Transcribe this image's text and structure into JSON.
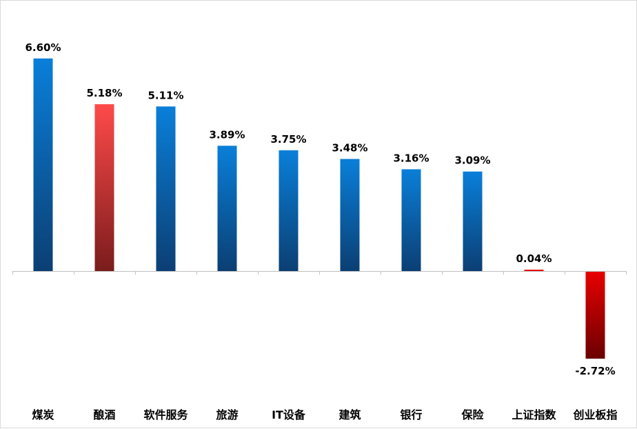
{
  "chart_data": {
    "type": "bar",
    "title": "",
    "xlabel": "",
    "ylabel": "",
    "categories": [
      "煤炭",
      "酿酒",
      "软件服务",
      "旅游",
      "IT设备",
      "建筑",
      "银行",
      "保险",
      "上证指数",
      "创业板指"
    ],
    "values": [
      6.6,
      5.18,
      5.11,
      3.89,
      3.75,
      3.48,
      3.16,
      3.09,
      0.04,
      -2.72
    ],
    "value_labels": [
      "6.60%",
      "5.18%",
      "5.11%",
      "3.89%",
      "3.75%",
      "3.48%",
      "3.16%",
      "3.09%",
      "0.04%",
      "-2.72%"
    ],
    "bar_colors": [
      "blue",
      "red",
      "blue",
      "blue",
      "blue",
      "blue",
      "blue",
      "blue",
      "red",
      "red"
    ],
    "ylim": [
      -4.55,
      8.0
    ],
    "grid": false,
    "legend": "none"
  },
  "colors": {
    "blue_top": "#0a7fd9",
    "blue_bottom": "#0b3f73",
    "red_top": "#ff4a4a",
    "red_bottom": "#7a1c1c",
    "neg_red_top": "#e80000",
    "neg_red_bottom": "#6b0000",
    "axis": "#bfbfbf"
  }
}
